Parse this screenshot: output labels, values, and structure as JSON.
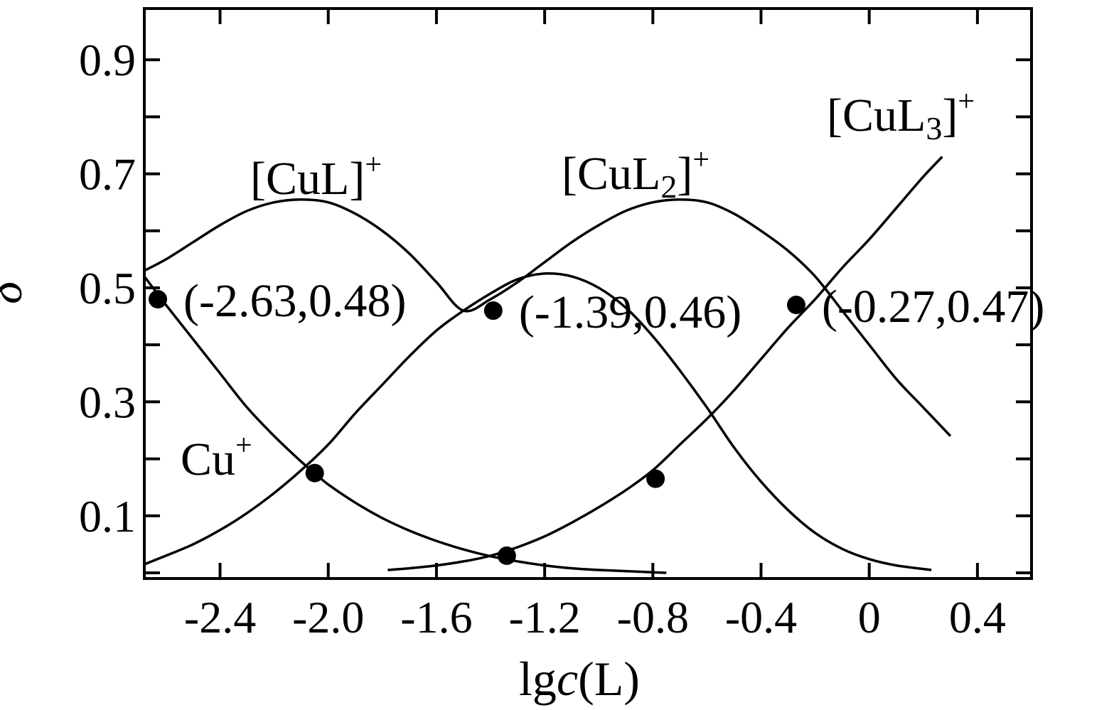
{
  "chart_data": {
    "type": "line",
    "title": "",
    "xlabel_prefix": "lg",
    "xlabel_italic": "c",
    "xlabel_suffix": "(L)",
    "ylabel": "δ",
    "xlim": [
      -2.68,
      0.6
    ],
    "ylim": [
      -0.01,
      0.99
    ],
    "x_ticks": [
      -2.4,
      -2.0,
      -1.6,
      -1.2,
      -0.8,
      -0.4,
      0,
      0.4
    ],
    "x_tick_labels": [
      "-2.4",
      "-2.0",
      "-1.6",
      "-1.2",
      "-0.8",
      "-0.4",
      "0",
      "0.4"
    ],
    "y_ticks": [
      0.1,
      0.3,
      0.5,
      0.7,
      0.9
    ],
    "y_tick_labels": [
      "0.1",
      "0.3",
      "0.5",
      "0.7",
      "0.9"
    ],
    "grid": false,
    "legend": "none",
    "series": [
      {
        "label_base": "Cu",
        "label_sub": "",
        "label_sup": "+",
        "label_bracket": false,
        "x": [
          -2.68,
          -2.6,
          -2.5,
          -2.4,
          -2.3,
          -2.2,
          -2.1,
          -2.05,
          -2.0,
          -1.9,
          -1.8,
          -1.7,
          -1.6,
          -1.5,
          -1.4,
          -1.3,
          -1.2,
          -1.1,
          -1.0,
          -0.9,
          -0.8,
          -0.75
        ],
        "values": [
          0.52,
          0.47,
          0.41,
          0.35,
          0.29,
          0.24,
          0.195,
          0.175,
          0.155,
          0.123,
          0.096,
          0.074,
          0.056,
          0.041,
          0.029,
          0.02,
          0.013,
          0.008,
          0.005,
          0.003,
          0.001,
          0.0
        ]
      },
      {
        "label_base": "CuL",
        "label_sub": "",
        "label_sup": "+",
        "label_bracket": true,
        "x": [
          -2.68,
          -2.6,
          -2.5,
          -2.4,
          -2.3,
          -2.2,
          -2.1,
          -2.0,
          -1.9,
          -1.8,
          -1.7,
          -1.6,
          -1.5,
          -1.4,
          -1.3,
          -1.2,
          -1.1,
          -1.0,
          -0.9,
          -0.8,
          -0.7,
          -0.6,
          -0.5,
          -0.4,
          -0.3,
          -0.2,
          -0.1,
          0.0,
          0.1,
          0.23
        ],
        "values": [
          0.015,
          0.03,
          0.05,
          0.075,
          0.105,
          0.14,
          0.18,
          0.225,
          0.28,
          0.33,
          0.38,
          0.425,
          0.46,
          0.49,
          0.515,
          0.525,
          0.52,
          0.5,
          0.465,
          0.415,
          0.355,
          0.29,
          0.22,
          0.16,
          0.11,
          0.07,
          0.042,
          0.024,
          0.013,
          0.005
        ]
      },
      {
        "label_base": "CuL",
        "label_sub": "2",
        "label_sup": "+",
        "label_bracket": true,
        "x": [
          -1.78,
          -1.7,
          -1.6,
          -1.5,
          -1.4,
          -1.3,
          -1.2,
          -1.1,
          -1.0,
          -0.9,
          -0.8,
          -0.7,
          -0.6,
          -0.5,
          -0.4,
          -0.3,
          -0.2,
          -0.1,
          0.0,
          0.1,
          0.2,
          0.27
        ],
        "values": [
          0.005,
          0.008,
          0.013,
          0.02,
          0.03,
          0.045,
          0.064,
          0.088,
          0.115,
          0.145,
          0.18,
          0.225,
          0.27,
          0.32,
          0.375,
          0.43,
          0.48,
          0.535,
          0.585,
          0.64,
          0.695,
          0.73
        ]
      },
      {
        "label_base": "CuL",
        "label_sub": "3",
        "label_sup": "+",
        "label_bracket": true,
        "x": [
          -2.68,
          -2.6,
          -2.5,
          -2.4,
          -2.3,
          -2.2,
          -2.1,
          -2.0,
          -1.9,
          -1.8,
          -1.7,
          -1.6,
          -1.5,
          -1.4,
          -1.3,
          -1.2,
          -1.1,
          -1.0,
          -0.9,
          -0.8,
          -0.7,
          -0.6,
          -0.5,
          -0.4,
          -0.3,
          -0.2,
          -0.1,
          0.0,
          0.1,
          0.2,
          0.3
        ],
        "values": [
          0.53,
          0.55,
          0.58,
          0.61,
          0.635,
          0.65,
          0.655,
          0.65,
          0.63,
          0.6,
          0.56,
          0.51,
          0.46,
          0.48,
          0.51,
          0.545,
          0.58,
          0.61,
          0.635,
          0.65,
          0.655,
          0.65,
          0.63,
          0.6,
          0.565,
          0.52,
          0.46,
          0.4,
          0.34,
          0.29,
          0.24
        ]
      }
    ],
    "marked_points": [
      {
        "x": -2.63,
        "y": 0.48,
        "label": "(-2.63,0.48)"
      },
      {
        "x": -1.39,
        "y": 0.46,
        "label": "(-1.39,0.46)"
      },
      {
        "x": -0.27,
        "y": 0.47,
        "label": "(-0.27,0.47)"
      },
      {
        "x": -2.05,
        "y": 0.175,
        "label": ""
      },
      {
        "x": -0.79,
        "y": 0.165,
        "label": ""
      },
      {
        "x": -1.34,
        "y": 0.03,
        "label": ""
      }
    ]
  }
}
